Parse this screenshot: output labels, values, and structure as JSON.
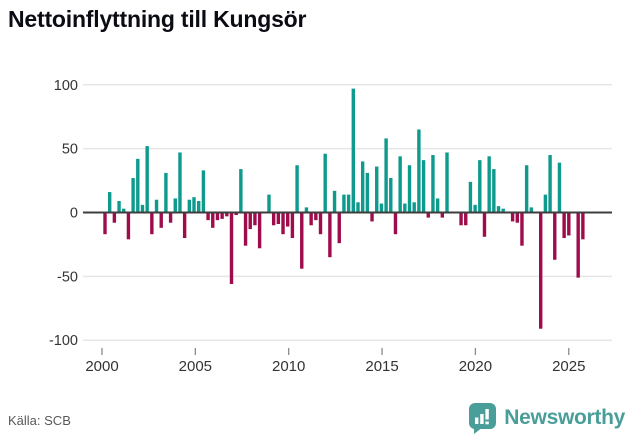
{
  "title": "Nettoinflyttning till Kungsör",
  "source": "Källa: SCB",
  "logo": {
    "text": "Newsworthy",
    "icon": "newsworthy-speech-bubble-chart-icon"
  },
  "colors": {
    "positive_bar": "#0e9a8c",
    "negative_bar": "#9e0c4b",
    "zero_line": "#3d3d3d",
    "gridline": "#e6e6e6",
    "tick_label": "#333333",
    "tick_mark": "#8a8a8a",
    "title_text": "#0b0b14",
    "source_text": "#595959",
    "logo_teal": "#4a9e99"
  },
  "chart_data": {
    "type": "bar",
    "title": "Nettoinflyttning till Kungsör",
    "xlabel": "",
    "ylabel": "",
    "ylim": [
      -100,
      100
    ],
    "grid": true,
    "frequency": "quarterly",
    "start_period": "2000Q1",
    "end_period": "2025Q3",
    "x_tick_labels": [
      "2000",
      "2005",
      "2010",
      "2015",
      "2020",
      "2025"
    ],
    "x_tick_years": [
      2000,
      2005,
      2010,
      2015,
      2020,
      2025
    ],
    "y_tick_values": [
      100,
      50,
      0,
      -50,
      -100
    ],
    "y_tick_labels": [
      "100",
      "50",
      "0",
      "-50",
      "-100"
    ],
    "series": [
      {
        "name": "Nettoinflyttning",
        "values": [
          -17,
          16,
          -8,
          9,
          3,
          -21,
          27,
          42,
          6,
          52,
          -17,
          10,
          -12,
          31,
          -8,
          11,
          47,
          -20,
          10,
          12,
          9,
          33,
          -6,
          -12,
          -6,
          -5,
          -3,
          -56,
          -2,
          34,
          -26,
          -13,
          -10,
          -28,
          0,
          14,
          -10,
          -9,
          -17,
          -11,
          -20,
          37,
          -44,
          4,
          -10,
          -6,
          -17,
          46,
          -35,
          17,
          -24,
          14,
          14,
          97,
          8,
          40,
          31,
          -7,
          36,
          7,
          58,
          27,
          -17,
          44,
          7,
          37,
          8,
          65,
          41,
          -4,
          45,
          11,
          -4,
          47,
          0,
          0,
          -10,
          -10,
          24,
          6,
          41,
          -19,
          44,
          34,
          5,
          3,
          0,
          -7,
          -8,
          -26,
          37,
          4,
          0,
          -91,
          14,
          45,
          -37,
          39,
          -20,
          -18,
          0,
          -51,
          -21
        ]
      }
    ]
  }
}
